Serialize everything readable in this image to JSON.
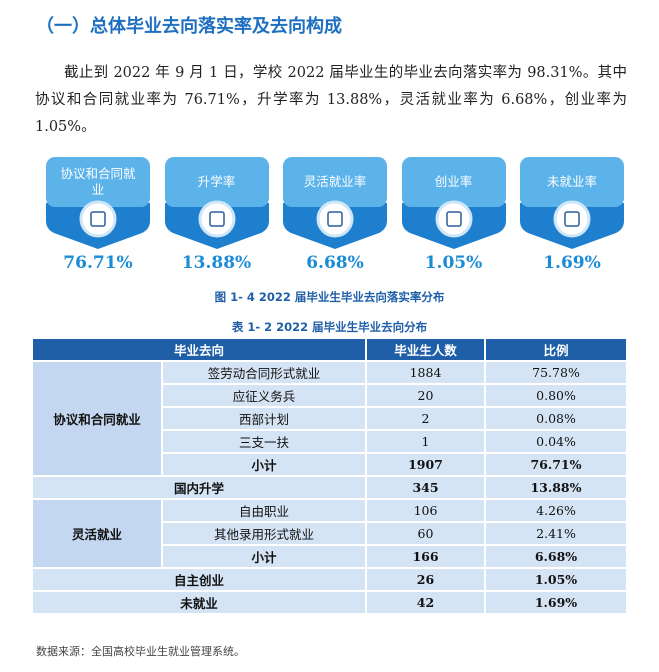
{
  "heading": "（一）总体毕业去向落实率及去向构成",
  "paragraph": "截止到 2022 年 9 月 1 日，学校 2022 届毕业生的毕业去向落实率为 98.31%。其中协议和合同就业率为 76.71%，升学率为 13.88%，灵活就业率为 6.68%，创业率为 1.05%。",
  "cards": [
    {
      "label": "协议和合同就业",
      "value": "76.71%"
    },
    {
      "label": "升学率",
      "value": "13.88%"
    },
    {
      "label": "灵活就业率",
      "value": "6.68%"
    },
    {
      "label": "创业率",
      "value": "1.05%"
    },
    {
      "label": "未就业率",
      "value": "1.69%"
    }
  ],
  "figure_caption": "图 1- 4  2022 届毕业生毕业去向落实率分布",
  "table_caption": "表 1- 2  2022 届毕业生毕业去向分布",
  "table": {
    "header": [
      "毕业去向",
      "毕业生人数",
      "比例"
    ],
    "groups": [
      {
        "name": "协议和合同就业",
        "rows": [
          [
            "签劳动合同形式就业",
            1884,
            "75.78%"
          ],
          [
            "应征义务兵",
            20,
            "0.80%"
          ],
          [
            "西部计划",
            2,
            "0.08%"
          ],
          [
            "三支一扶",
            1,
            "0.04%"
          ]
        ],
        "subtotal": [
          "小计",
          1907,
          "76.71%"
        ]
      },
      {
        "name": "国内升学",
        "count": 345,
        "ratio": "13.88%"
      },
      {
        "name": "灵活就业",
        "rows": [
          [
            "自由职业",
            106,
            "4.26%"
          ],
          [
            "其他录用形式就业",
            60,
            "2.41%"
          ]
        ],
        "subtotal": [
          "小计",
          166,
          "6.68%"
        ]
      },
      {
        "name": "自主创业",
        "count": 26,
        "ratio": "1.05%"
      },
      {
        "name": "未就业",
        "count": 42,
        "ratio": "1.69%"
      }
    ]
  },
  "source": "数据来源：全国高校毕业生就业管理系统。"
}
